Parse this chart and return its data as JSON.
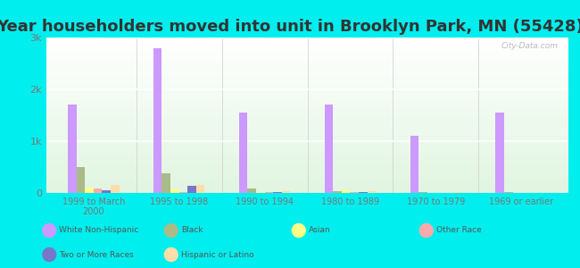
{
  "title": "Year householders moved into unit in Brooklyn Park, MN (55428)",
  "categories": [
    "1999 to March\n2000",
    "1995 to 1998",
    "1990 to 1994",
    "1980 to 1989",
    "1970 to 1979",
    "1969 or earlier"
  ],
  "series": {
    "White Non-Hispanic": [
      1700,
      2800,
      1550,
      1700,
      1100,
      1550
    ],
    "Black": [
      500,
      380,
      80,
      30,
      10,
      10
    ],
    "Asian": [
      110,
      70,
      20,
      60,
      5,
      5
    ],
    "Other Race": [
      80,
      20,
      15,
      10,
      5,
      5
    ],
    "Two or More Races": [
      50,
      140,
      15,
      10,
      5,
      5
    ],
    "Hispanic or Latino": [
      160,
      155,
      30,
      30,
      10,
      5
    ]
  },
  "colors": {
    "White Non-Hispanic": "#cc99ff",
    "Black": "#aabb88",
    "Asian": "#ffff88",
    "Other Race": "#ffaaaa",
    "Two or More Races": "#7777cc",
    "Hispanic or Latino": "#ffddaa"
  },
  "ylim": [
    0,
    3000
  ],
  "yticks": [
    0,
    1000,
    2000,
    3000
  ],
  "ytick_labels": [
    "0",
    "1k",
    "2k",
    "3k"
  ],
  "background_color": "#00eeee",
  "title_fontsize": 13,
  "watermark": "City-Data.com",
  "legend_order": [
    "White Non-Hispanic",
    "Black",
    "Asian",
    "Other Race",
    "Two or More Races",
    "Hispanic or Latino"
  ]
}
